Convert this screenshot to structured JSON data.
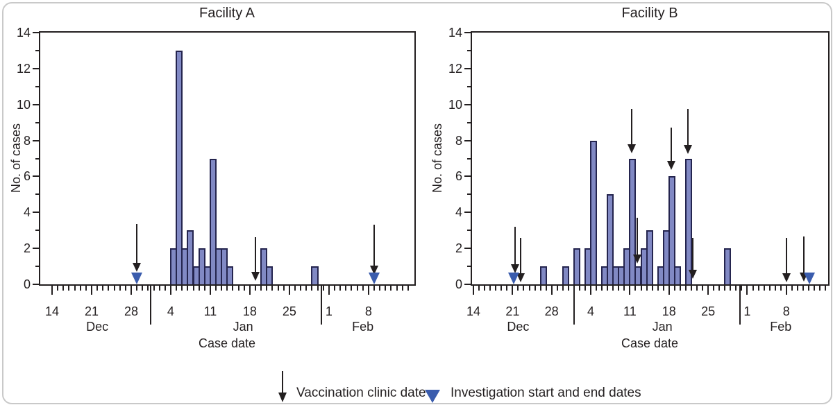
{
  "chart_data": {
    "type": "bar",
    "figure_kind": "epidemic-curve-two-panels",
    "y_axis": {
      "label": "No. of cases",
      "min": 0,
      "max": 14,
      "major_step": 2,
      "major_tick_labels": [
        "0",
        "2",
        "4",
        "6",
        "8",
        "10",
        "12",
        "14"
      ]
    },
    "x_axis": {
      "label": "Case date",
      "range": "Dec 14 - Feb 16",
      "week_tick_labels": [
        "14",
        "21",
        "28",
        "4",
        "11",
        "18",
        "25",
        "1",
        "8"
      ],
      "month_labels": [
        "Dec",
        "Jan",
        "Feb"
      ]
    },
    "legend": {
      "clinic": {
        "icon": "down-arrow",
        "label": "Vaccination clinic date"
      },
      "investigation": {
        "icon": "filled-triangle",
        "label": "Investigation start and end dates"
      }
    },
    "panels": [
      {
        "title": "Facility A",
        "bars": [
          {
            "date": "Jan 4",
            "day": 21,
            "cases": 2
          },
          {
            "date": "Jan 5",
            "day": 22,
            "cases": 13
          },
          {
            "date": "Jan 6",
            "day": 23,
            "cases": 2
          },
          {
            "date": "Jan 7",
            "day": 24,
            "cases": 3
          },
          {
            "date": "Jan 8",
            "day": 25,
            "cases": 1
          },
          {
            "date": "Jan 9",
            "day": 26,
            "cases": 2
          },
          {
            "date": "Jan 10",
            "day": 27,
            "cases": 1
          },
          {
            "date": "Jan 11",
            "day": 28,
            "cases": 7
          },
          {
            "date": "Jan 12",
            "day": 29,
            "cases": 2
          },
          {
            "date": "Jan 13",
            "day": 30,
            "cases": 2
          },
          {
            "date": "Jan 14",
            "day": 31,
            "cases": 1
          },
          {
            "date": "Jan 20",
            "day": 37,
            "cases": 2
          },
          {
            "date": "Jan 21",
            "day": 38,
            "cases": 1
          },
          {
            "date": "Jan 29",
            "day": 46,
            "cases": 1
          }
        ],
        "clinic_arrows": [
          {
            "date": "Dec 29",
            "day": 14.95,
            "from": 3.35,
            "to": 0.7
          },
          {
            "date": "Jan 19",
            "day": 35.95,
            "from": 2.62,
            "to": 0.18
          },
          {
            "date": "Feb 9",
            "day": 57.0,
            "from": 3.32,
            "to": 0.55
          }
        ],
        "investigation_markers": [
          {
            "date": "Dec 29",
            "day": 14.95,
            "role": "start"
          },
          {
            "date": "Feb 9",
            "day": 57.0,
            "role": "end"
          }
        ]
      },
      {
        "title": "Facility B",
        "bars": [
          {
            "date": "Dec 26",
            "day": 12,
            "cases": 1
          },
          {
            "date": "Dec 30",
            "day": 16,
            "cases": 1
          },
          {
            "date": "Jan 1",
            "day": 18,
            "cases": 2
          },
          {
            "date": "Jan 3",
            "day": 20,
            "cases": 2
          },
          {
            "date": "Jan 4",
            "day": 21,
            "cases": 8
          },
          {
            "date": "Jan 6",
            "day": 23,
            "cases": 1
          },
          {
            "date": "Jan 7",
            "day": 24,
            "cases": 5
          },
          {
            "date": "Jan 8",
            "day": 25,
            "cases": 1
          },
          {
            "date": "Jan 9",
            "day": 26,
            "cases": 1
          },
          {
            "date": "Jan 10",
            "day": 27,
            "cases": 2
          },
          {
            "date": "Jan 11",
            "day": 28,
            "cases": 7
          },
          {
            "date": "Jan 12",
            "day": 29,
            "cases": 1
          },
          {
            "date": "Jan 13",
            "day": 30,
            "cases": 2
          },
          {
            "date": "Jan 14",
            "day": 31,
            "cases": 3
          },
          {
            "date": "Jan 16",
            "day": 33,
            "cases": 1
          },
          {
            "date": "Jan 17",
            "day": 34,
            "cases": 3
          },
          {
            "date": "Jan 18",
            "day": 35,
            "cases": 6
          },
          {
            "date": "Jan 19",
            "day": 36,
            "cases": 1
          },
          {
            "date": "Jan 21",
            "day": 38,
            "cases": 7
          },
          {
            "date": "Jan 28",
            "day": 45,
            "cases": 2
          }
        ],
        "clinic_arrows": [
          {
            "date": "Dec 21",
            "day": 7.45,
            "from": 3.2,
            "to": 0.62
          },
          {
            "date": "Dec 22",
            "day": 8.45,
            "from": 2.6,
            "to": 0.12
          },
          {
            "date": "Jan 11",
            "day": 28.35,
            "from": 9.75,
            "to": 7.3
          },
          {
            "date": "Jan 12",
            "day": 29.3,
            "from": 3.7,
            "to": 1.15
          },
          {
            "date": "Jan 18",
            "day": 35.4,
            "from": 8.7,
            "to": 6.35
          },
          {
            "date": "Jan 21",
            "day": 38.35,
            "from": 9.75,
            "to": 7.25
          },
          {
            "date": "Jan 22",
            "day": 39.2,
            "from": 2.6,
            "to": 0.3
          },
          {
            "date": "Feb 8",
            "day": 56.05,
            "from": 2.6,
            "to": 0.1
          },
          {
            "date": "Feb 11",
            "day": 59.15,
            "from": 2.65,
            "to": 0.15
          }
        ],
        "investigation_markers": [
          {
            "date": "Dec 21",
            "day": 7.2,
            "role": "start"
          },
          {
            "date": "Feb 12",
            "day": 60.15,
            "role": "end"
          }
        ]
      }
    ]
  },
  "colors": {
    "bar_fill": "#8189C4",
    "bar_stroke": "#24244E",
    "investigation_blue": "#3A5CAD",
    "ink": "#231F20",
    "card_border": "#C9C9C9"
  }
}
